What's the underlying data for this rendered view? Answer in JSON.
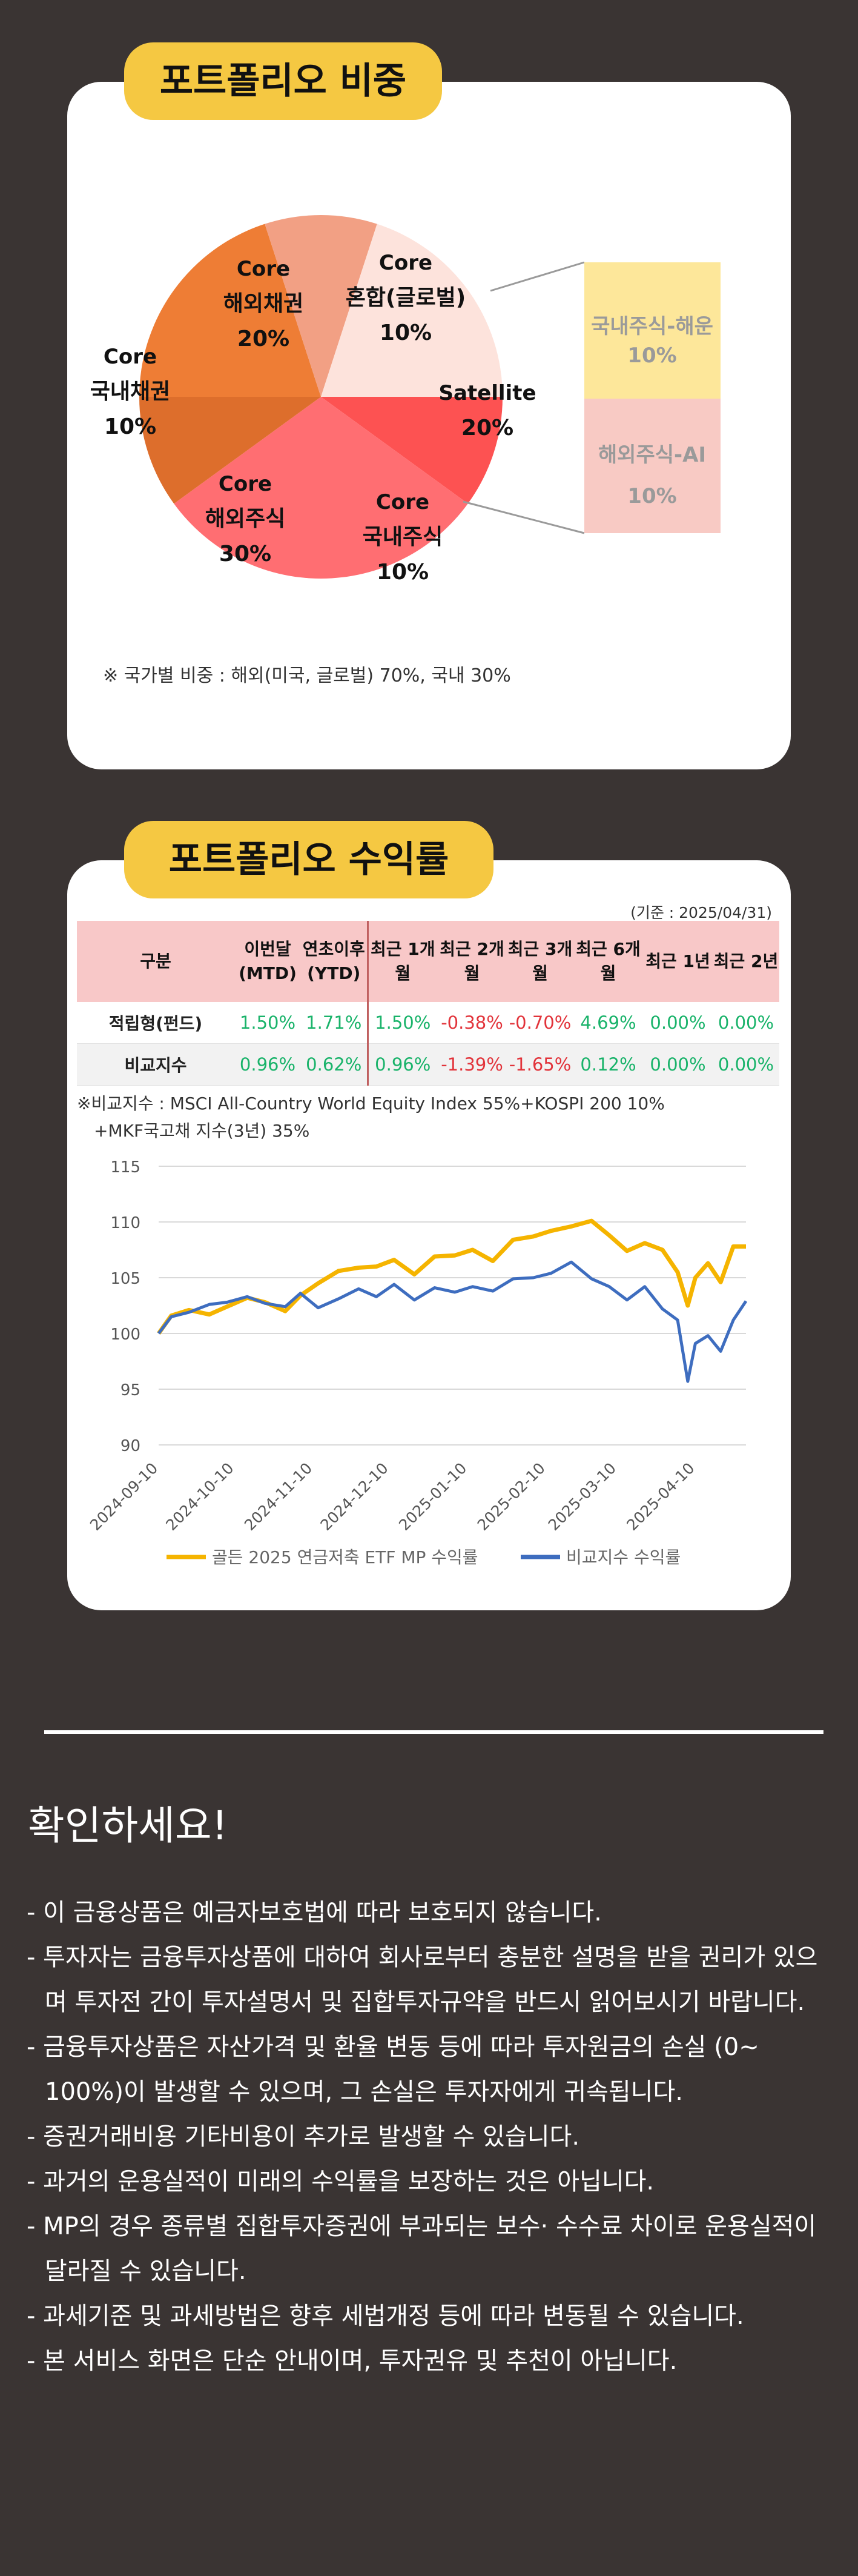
{
  "section1": {
    "title": "포트폴리오 비중",
    "slices": [
      {
        "l1": "Core",
        "l2": "해외채권",
        "pct": "20%",
        "color": "#ee7d35"
      },
      {
        "l1": "Core",
        "l2": "혼합(글로벌)",
        "pct": "10%",
        "color": "#f2a084"
      },
      {
        "l1": "Satellite",
        "l2": "",
        "pct": "20%",
        "color": "#fde3dc"
      },
      {
        "l1": "Core",
        "l2": "국내주식",
        "pct": "10%",
        "color": "#fd5252"
      },
      {
        "l1": "Core",
        "l2": "해외주식",
        "pct": "30%",
        "color": "#ff6e72"
      },
      {
        "l1": "Core",
        "l2": "국내채권",
        "pct": "10%",
        "color": "#dd6e2c"
      }
    ],
    "satellite_breakdown": [
      {
        "label": "국내주식-해운",
        "pct": "10%",
        "color": "#fde79a"
      },
      {
        "label": "해외주식-AI",
        "pct": "10%",
        "color": "#f8cac4"
      }
    ],
    "note": "※ 국가별 비중 : 해외(미국, 글로벌) 70%, 국내 30%"
  },
  "section2": {
    "title": "포트폴리오 수익률",
    "base_date": "(기준 : 2025/04/31)",
    "table": {
      "headers": [
        "구분",
        "이번달 (MTD)",
        "연초이후 (YTD)",
        "최근 1개월",
        "최근 2개월",
        "최근 3개월",
        "최근 6개월",
        "최근 1년",
        "최근 2년"
      ],
      "rows": [
        {
          "label": "적립형(펀드)",
          "values": [
            "1.50%",
            "1.71%",
            "1.50%",
            "-0.38%",
            "-0.70%",
            "4.69%",
            "0.00%",
            "0.00%"
          ]
        },
        {
          "label": "비교지수",
          "values": [
            "0.96%",
            "0.62%",
            "0.96%",
            "-1.39%",
            "-1.65%",
            "0.12%",
            "0.00%",
            "0.00%"
          ]
        }
      ]
    },
    "benchmark_note_1": "※비교지수 : MSCI All-Country World Equity Index 55%+KOSPI 200 10%",
    "benchmark_note_2": "+MKF국고채 지수(3년) 35%"
  },
  "chart_data": {
    "type": "line",
    "x_ticks": [
      "2024-09-10",
      "2024-10-10",
      "2024-11-10",
      "2024-12-10",
      "2025-01-10",
      "2025-02-10",
      "2025-03-10",
      "2025-04-10"
    ],
    "ylim": [
      90,
      115
    ],
    "y_ticks": [
      90,
      95,
      100,
      105,
      110,
      115
    ],
    "grid": true,
    "legend_position": "bottom",
    "series": [
      {
        "name": "골든 2025 연금저축 ETF MP 수익률",
        "color": "#f5b400",
        "x": [
          "2024-09-10",
          "2024-09-15",
          "2024-09-22",
          "2024-09-30",
          "2024-10-07",
          "2024-10-15",
          "2024-10-22",
          "2024-10-30",
          "2024-11-05",
          "2024-11-12",
          "2024-11-20",
          "2024-11-28",
          "2024-12-05",
          "2024-12-12",
          "2024-12-20",
          "2024-12-28",
          "2025-01-05",
          "2025-01-12",
          "2025-01-20",
          "2025-01-28",
          "2025-02-05",
          "2025-02-12",
          "2025-02-20",
          "2025-02-28",
          "2025-03-07",
          "2025-03-14",
          "2025-03-21",
          "2025-03-28",
          "2025-04-03",
          "2025-04-07",
          "2025-04-10",
          "2025-04-15",
          "2025-04-20",
          "2025-04-25",
          "2025-04-30"
        ],
        "values": [
          100.0,
          101.6,
          102.1,
          101.7,
          102.4,
          103.2,
          102.8,
          102.0,
          103.4,
          104.5,
          105.6,
          105.9,
          106.0,
          106.6,
          105.3,
          106.9,
          107.0,
          107.5,
          106.5,
          108.4,
          108.7,
          109.2,
          109.6,
          110.1,
          108.8,
          107.4,
          108.1,
          107.5,
          105.5,
          102.5,
          105.0,
          106.3,
          104.6,
          107.8,
          107.8
        ]
      },
      {
        "name": "비교지수 수익률",
        "color": "#3e6dbf",
        "x": [
          "2024-09-10",
          "2024-09-15",
          "2024-09-22",
          "2024-09-30",
          "2024-10-07",
          "2024-10-15",
          "2024-10-22",
          "2024-10-30",
          "2024-11-05",
          "2024-11-12",
          "2024-11-20",
          "2024-11-28",
          "2024-12-05",
          "2024-12-12",
          "2024-12-20",
          "2024-12-28",
          "2025-01-05",
          "2025-01-12",
          "2025-01-20",
          "2025-01-28",
          "2025-02-05",
          "2025-02-12",
          "2025-02-20",
          "2025-02-28",
          "2025-03-07",
          "2025-03-14",
          "2025-03-21",
          "2025-03-28",
          "2025-04-03",
          "2025-04-07",
          "2025-04-10",
          "2025-04-15",
          "2025-04-20",
          "2025-04-25",
          "2025-04-30"
        ],
        "values": [
          100.0,
          101.5,
          101.9,
          102.6,
          102.8,
          103.3,
          102.7,
          102.4,
          103.6,
          102.3,
          103.1,
          104.0,
          103.3,
          104.4,
          103.0,
          104.1,
          103.7,
          104.2,
          103.8,
          104.9,
          105.0,
          105.4,
          106.4,
          104.9,
          104.2,
          103.0,
          104.2,
          102.2,
          101.2,
          95.7,
          99.1,
          99.8,
          98.4,
          101.2,
          102.9
        ]
      }
    ]
  }
}
